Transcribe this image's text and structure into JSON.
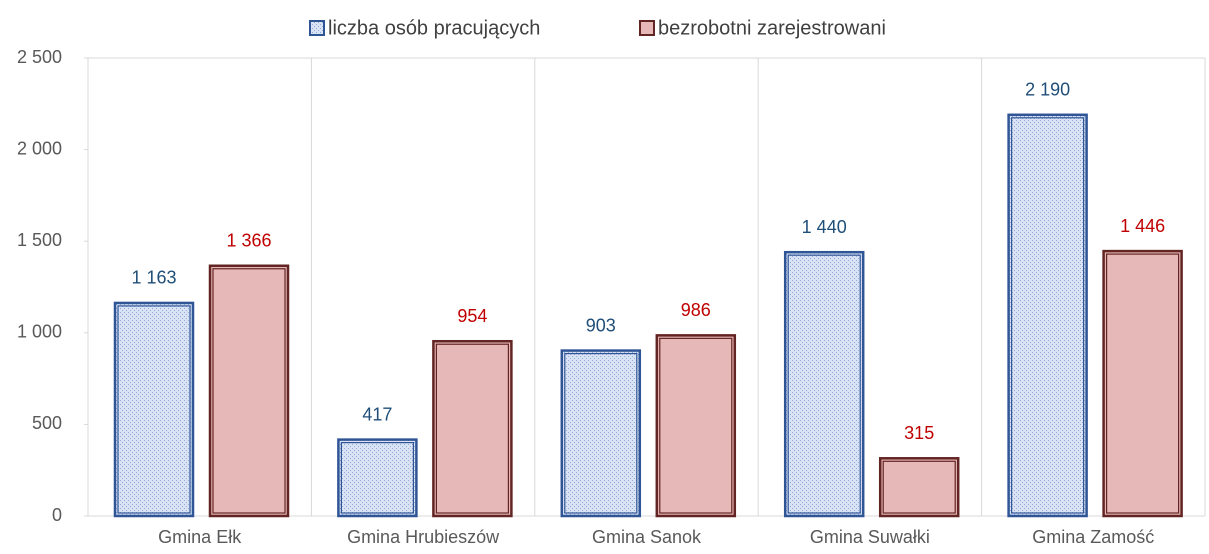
{
  "chart_data": {
    "type": "bar",
    "categories": [
      "Gmina Ełk",
      "Gmina Hrubieszów",
      "Gmina Sanok",
      "Gmina Suwałki",
      "Gmina Zamość"
    ],
    "series": [
      {
        "name": "liczba osób pracujących",
        "color": "#2f5597",
        "values": [
          1163,
          417,
          903,
          1440,
          2190
        ],
        "value_labels": [
          "1 163",
          "417",
          "903",
          "1 440",
          "2 190"
        ]
      },
      {
        "name": "bezrobotni zarejestrowani",
        "color": "#632523",
        "values": [
          1366,
          954,
          986,
          315,
          1446
        ],
        "value_labels": [
          "1 366",
          "954",
          "986",
          "315",
          "1 446"
        ]
      }
    ],
    "ylim": [
      0,
      2500
    ],
    "yticks": [
      0,
      {
        "value": 500,
        "label": "500"
      },
      {
        "value": 1000,
        "label": "1 000"
      },
      {
        "value": 1500,
        "label": "1 500"
      },
      {
        "value": 2000,
        "label": "2 000"
      },
      {
        "value": 2500,
        "label": "2 500"
      }
    ],
    "legend": "top"
  }
}
